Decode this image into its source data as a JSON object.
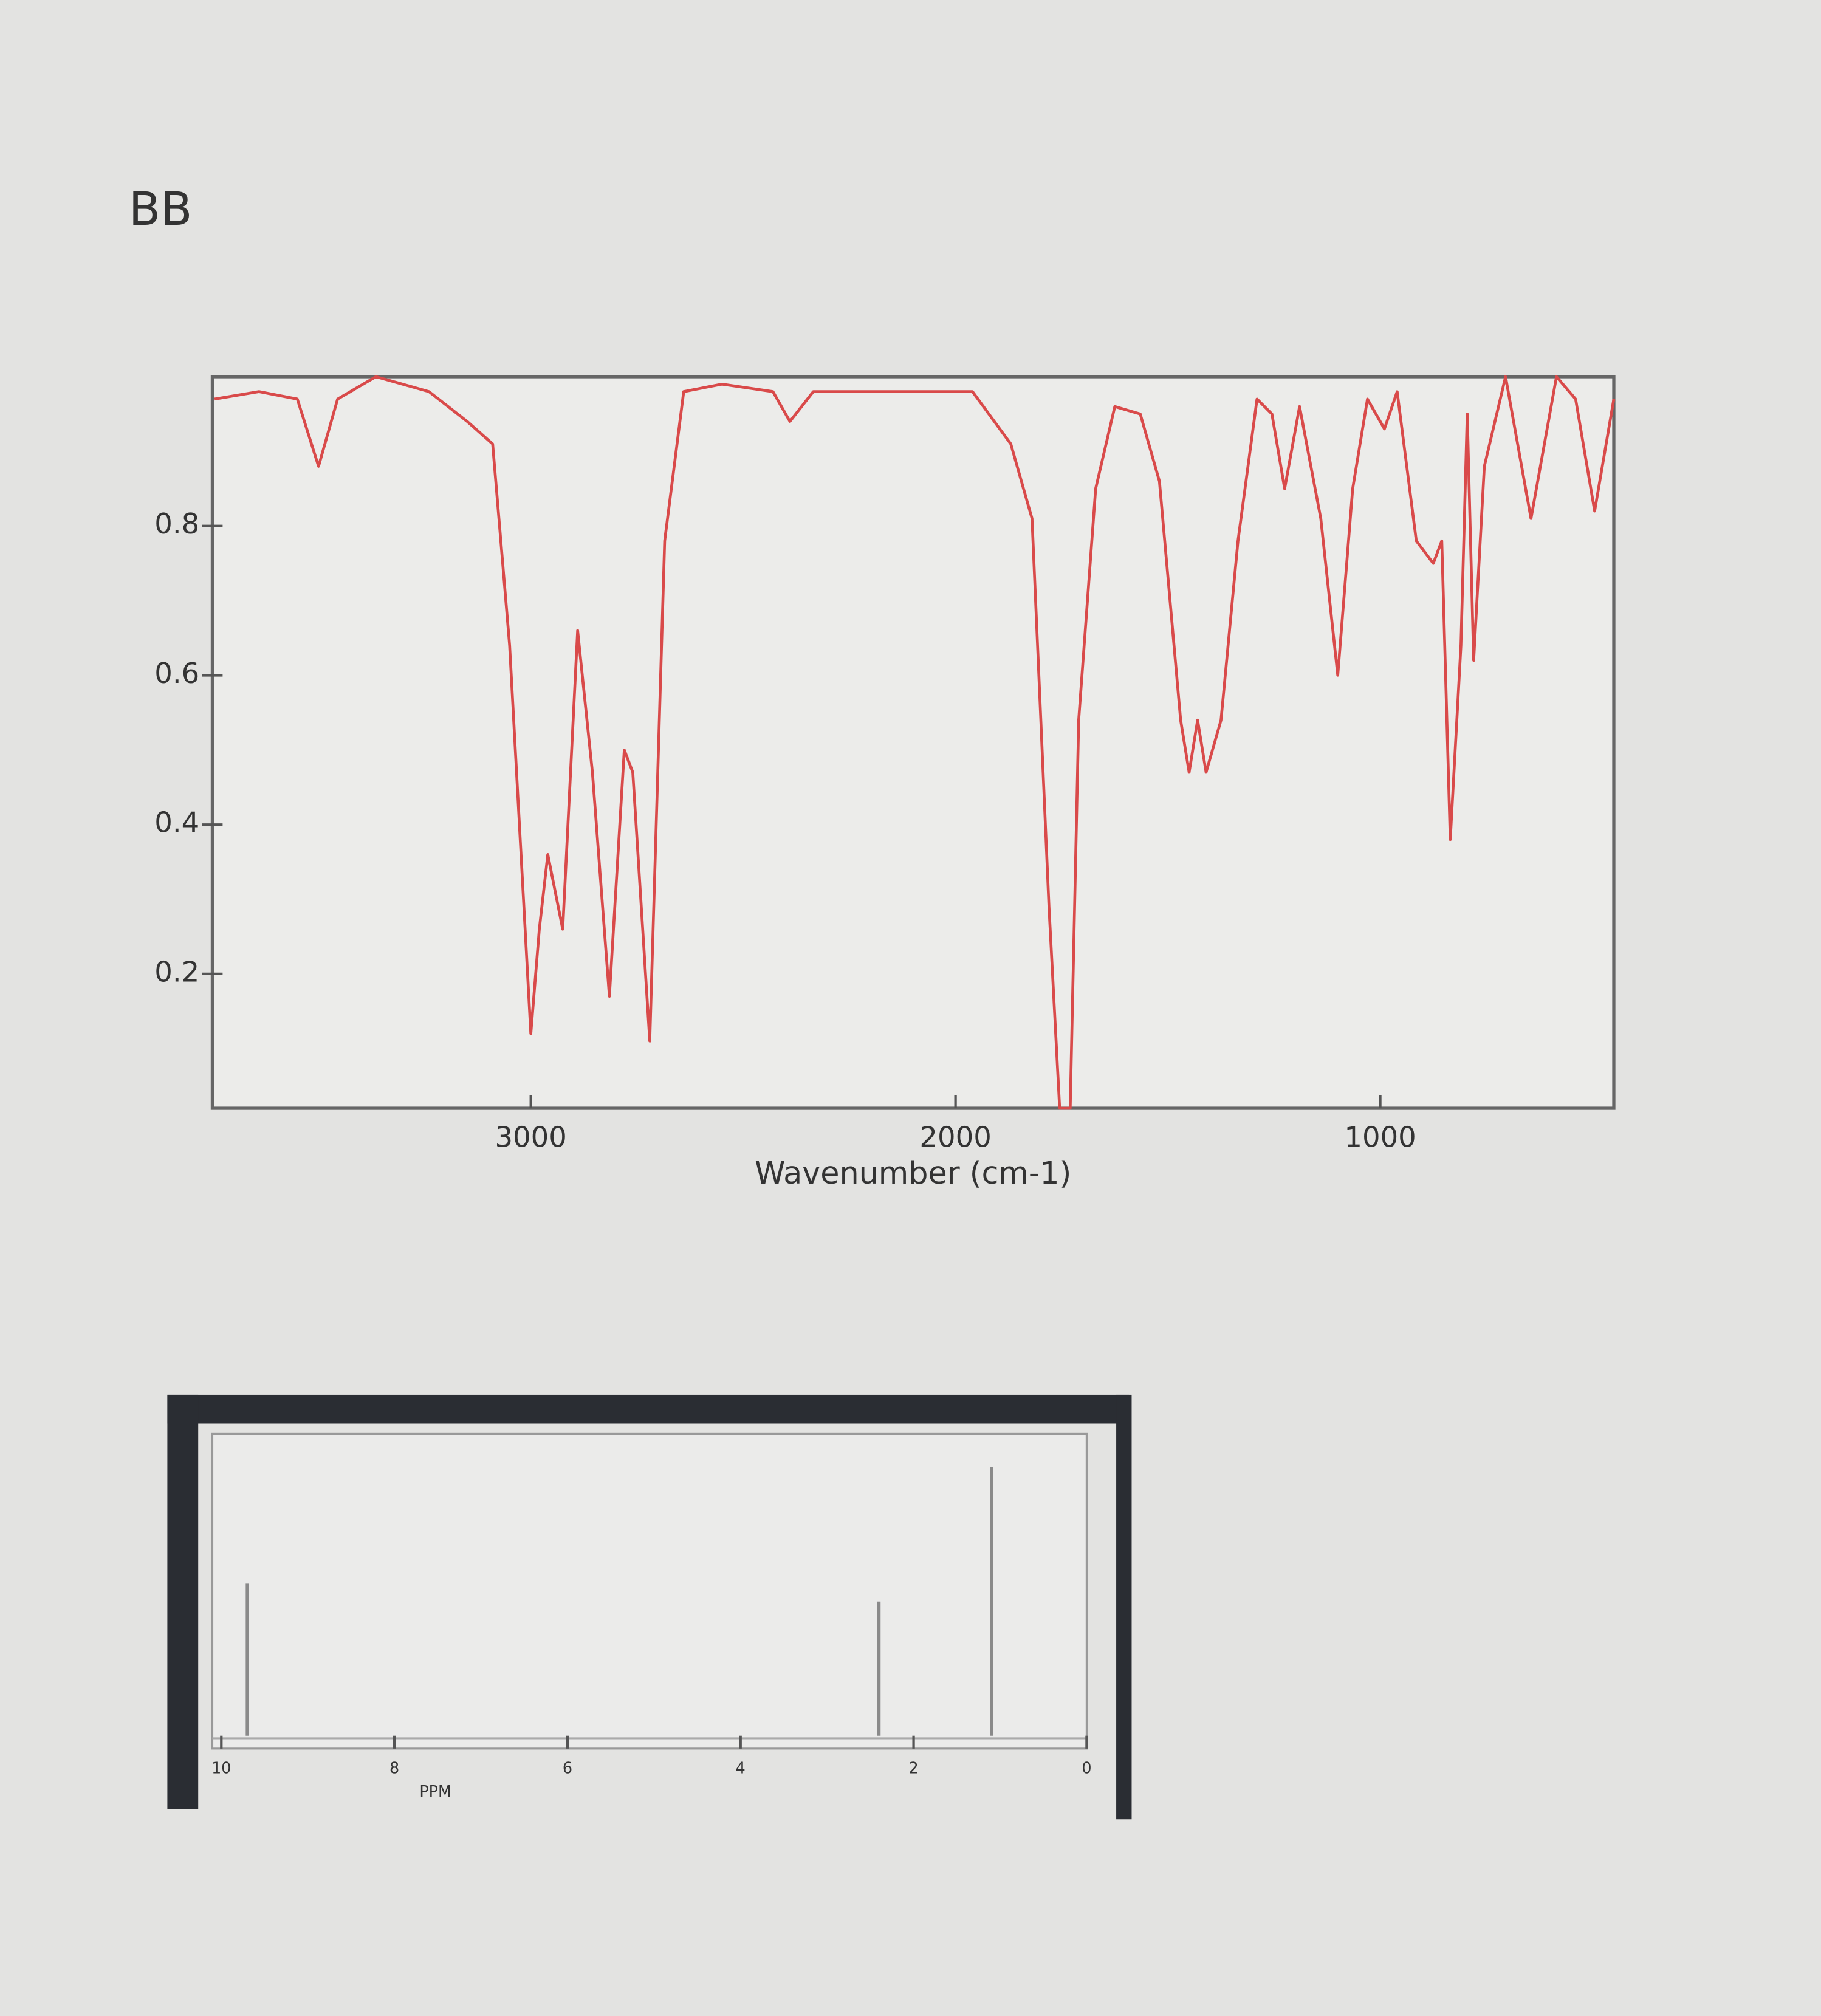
{
  "label": "BB",
  "chart_data": [
    {
      "type": "line",
      "xlabel": "Wavenumber (cm-1)",
      "color": "#d94a4a",
      "xlim": [
        3750,
        450
      ],
      "ylim": [
        0.02,
        1.0
      ],
      "xticks": [
        3000,
        2000,
        1000
      ],
      "yticks": [
        0.2,
        0.4,
        0.6,
        0.8
      ],
      "x": [
        3745,
        3640,
        3550,
        3500,
        3455,
        3365,
        3240,
        3150,
        3090,
        3050,
        3000,
        2980,
        2960,
        2925,
        2890,
        2855,
        2815,
        2780,
        2760,
        2720,
        2685,
        2640,
        2550,
        2430,
        2390,
        2335,
        2125,
        1960,
        1870,
        1820,
        1780,
        1755,
        1730,
        1710,
        1670,
        1625,
        1565,
        1520,
        1470,
        1450,
        1430,
        1410,
        1375,
        1335,
        1290,
        1255,
        1225,
        1190,
        1140,
        1100,
        1065,
        1030,
        990,
        960,
        915,
        875,
        855,
        835,
        810,
        795,
        780,
        755,
        705,
        645,
        585,
        540,
        495,
        450
      ],
      "values": [
        0.97,
        0.98,
        0.97,
        0.88,
        0.97,
        1.0,
        0.98,
        0.94,
        0.91,
        0.64,
        0.12,
        0.26,
        0.36,
        0.26,
        0.66,
        0.47,
        0.17,
        0.5,
        0.47,
        0.11,
        0.78,
        0.98,
        0.99,
        0.98,
        0.94,
        0.98,
        0.98,
        0.98,
        0.91,
        0.81,
        0.29,
        0.02,
        0.02,
        0.54,
        0.85,
        0.96,
        0.95,
        0.86,
        0.54,
        0.47,
        0.54,
        0.47,
        0.54,
        0.78,
        0.97,
        0.95,
        0.85,
        0.96,
        0.81,
        0.6,
        0.85,
        0.97,
        0.93,
        0.98,
        0.78,
        0.75,
        0.78,
        0.38,
        0.64,
        0.95,
        0.62,
        0.88,
        1.0,
        0.81,
        1.0,
        0.97,
        0.82,
        0.97
      ]
    },
    {
      "type": "stem",
      "xlabel": "PPM",
      "color": "#8a8a8a",
      "xlim": [
        10,
        0
      ],
      "ylim": [
        0,
        1
      ],
      "xticks": [
        10,
        8,
        6,
        4,
        2,
        0
      ],
      "x": [
        9.7,
        2.4,
        1.1
      ],
      "values": [
        0.51,
        0.45,
        0.9
      ]
    }
  ]
}
